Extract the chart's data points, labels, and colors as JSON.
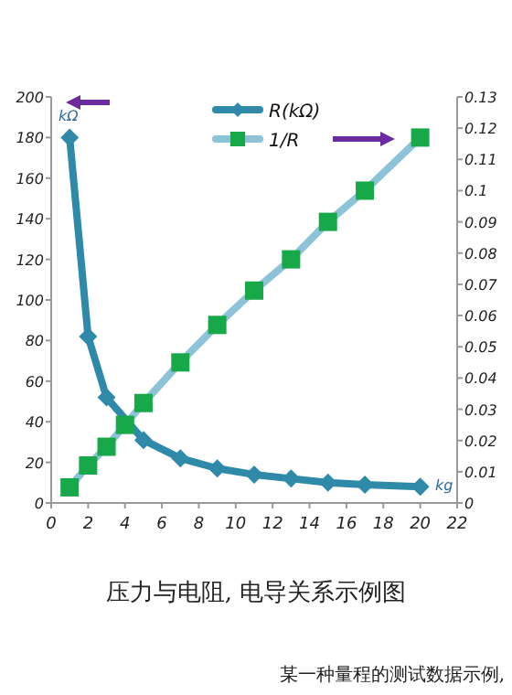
{
  "chart_data": {
    "type": "line",
    "title": "压力与电阻, 电导关系示例图",
    "annotations": [
      "kΩ",
      "kg",
      "某一种量程的测试数据示例,"
    ],
    "xlim": [
      0,
      22
    ],
    "xticks": [
      0,
      2,
      4,
      6,
      8,
      10,
      12,
      14,
      16,
      18,
      20,
      22
    ],
    "ylim": [
      0,
      200
    ],
    "yticks": [
      0,
      20,
      40,
      60,
      80,
      100,
      120,
      140,
      160,
      180,
      200
    ],
    "y2lim": [
      0,
      0.13
    ],
    "y2ticks": [
      0,
      0.01,
      0.02,
      0.03,
      0.04,
      0.05,
      0.06,
      0.07,
      0.08,
      0.09,
      0.1,
      0.11,
      0.12,
      0.13
    ],
    "grid": false,
    "legend": "top",
    "series": [
      {
        "name": "R(kΩ)",
        "color": "#2e8aa8",
        "marker": "diamond",
        "x": [
          1,
          2,
          3,
          5,
          7,
          9,
          11,
          13,
          15,
          17,
          20
        ],
        "values": [
          180,
          82,
          52,
          31,
          22,
          17,
          14,
          12,
          10,
          9,
          8
        ]
      },
      {
        "name": "1/R",
        "color": "#8cc3d8",
        "marker": "square",
        "axis": "y2",
        "colors": [
          "#17a84a",
          "#17a84a",
          "#17a84a",
          "#17a84a",
          "#17a84a",
          "#17a84a",
          "#17a84a",
          "#17a84a",
          "#17a84a",
          "#17a84a",
          "#17a84a",
          "#17a84a"
        ],
        "x": [
          1,
          2,
          3,
          4,
          5,
          7,
          9,
          11,
          13,
          15,
          17,
          20
        ],
        "values": [
          0.005,
          0.012,
          0.018,
          0.025,
          0.032,
          0.045,
          0.057,
          0.068,
          0.078,
          0.09,
          0.1,
          0.117
        ]
      }
    ]
  }
}
